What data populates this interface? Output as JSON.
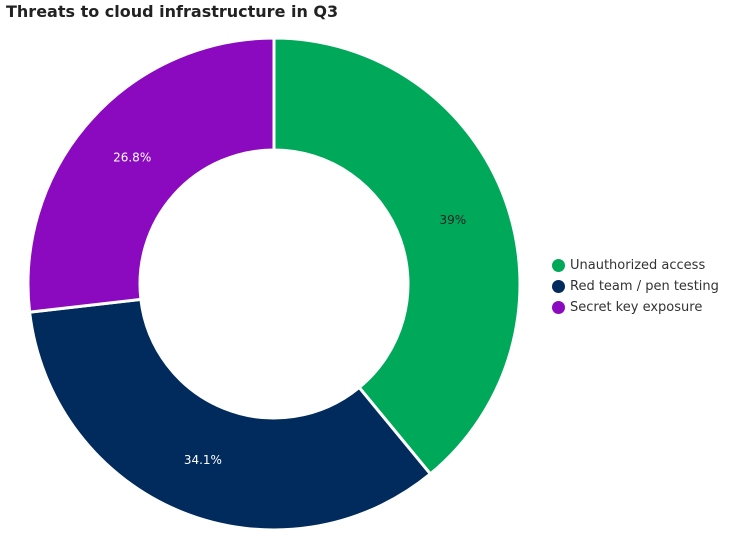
{
  "chart_data": {
    "type": "pie",
    "variant": "donut",
    "title": "Threats to cloud infrastructure in Q3",
    "legend_position": "right",
    "series": [
      {
        "name": "Unauthorized access",
        "value": 39,
        "label": "39%",
        "color": "#00a85a",
        "label_color": "#222222"
      },
      {
        "name": "Red team / pen testing",
        "value": 34.1,
        "label": "34.1%",
        "color": "#002b5c",
        "label_color": "#ffffff"
      },
      {
        "name": "Secret key exposure",
        "value": 26.8,
        "label": "26.8%",
        "color": "#8b0abf",
        "label_color": "#ffffff"
      }
    ]
  }
}
